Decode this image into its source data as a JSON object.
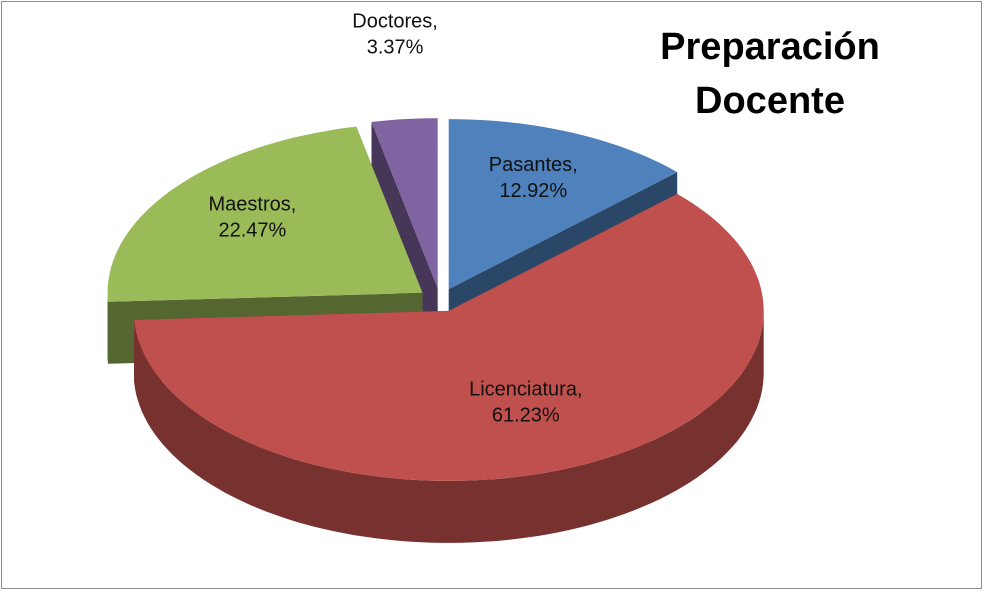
{
  "chart_data": {
    "type": "pie3d",
    "title": "Preparación Docente",
    "categories": [
      "Pasantes",
      "Licenciatura",
      "Maestros",
      "Doctores"
    ],
    "values": [
      12.92,
      61.23,
      22.47,
      3.37
    ],
    "value_labels": [
      "12.92%",
      "61.23%",
      "22.47%",
      "3.37%"
    ],
    "label_separator": ",",
    "colors": [
      "#4f81bd",
      "#c0504d",
      "#9bbb59",
      "#8064a2"
    ]
  }
}
